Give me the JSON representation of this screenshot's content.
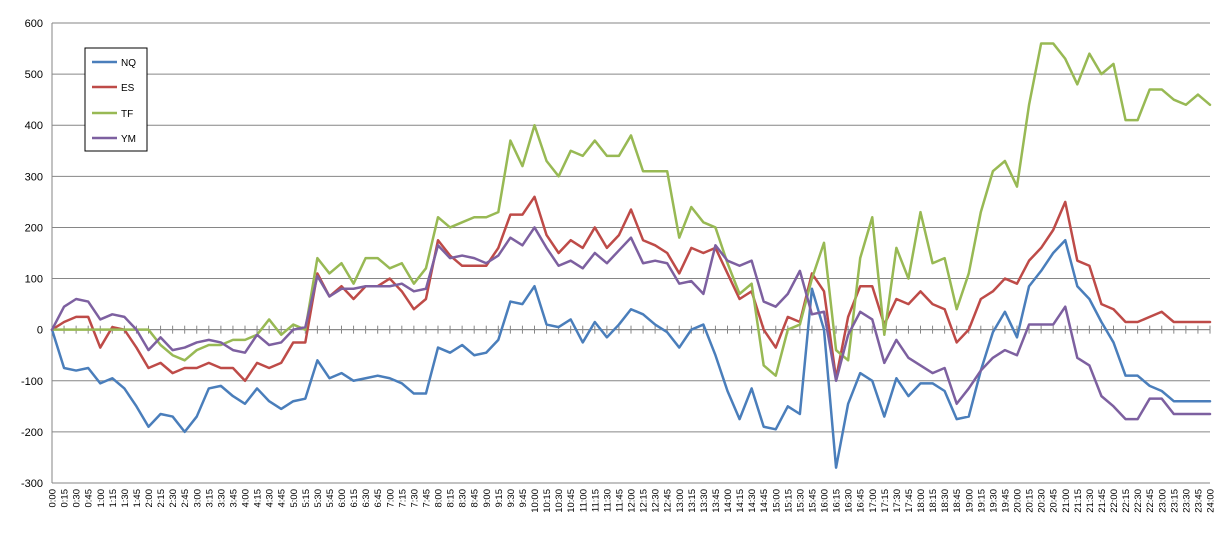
{
  "chart_data": {
    "type": "line",
    "title": "",
    "xlabel": "",
    "ylabel": "",
    "ylim": [
      -300,
      600
    ],
    "yticks": [
      -300,
      -200,
      -100,
      0,
      100,
      200,
      300,
      400,
      500,
      600
    ],
    "grid": true,
    "legend_position": "top-left",
    "x": [
      "0:00",
      "0:15",
      "0:30",
      "0:45",
      "1:00",
      "1:15",
      "1:30",
      "1:45",
      "2:00",
      "2:15",
      "2:30",
      "2:45",
      "3:00",
      "3:15",
      "3:30",
      "3:45",
      "4:00",
      "4:15",
      "4:30",
      "4:45",
      "5:00",
      "5:15",
      "5:30",
      "5:45",
      "6:00",
      "6:15",
      "6:30",
      "6:45",
      "7:00",
      "7:15",
      "7:30",
      "7:45",
      "8:00",
      "8:15",
      "8:30",
      "8:45",
      "9:00",
      "9:15",
      "9:30",
      "9:45",
      "10:00",
      "10:15",
      "10:30",
      "10:45",
      "11:00",
      "11:15",
      "11:30",
      "11:45",
      "12:00",
      "12:15",
      "12:30",
      "12:45",
      "13:00",
      "13:15",
      "13:30",
      "13:45",
      "14:00",
      "14:15",
      "14:30",
      "14:45",
      "15:00",
      "15:15",
      "15:30",
      "15:45",
      "16:00",
      "16:15",
      "16:30",
      "16:45",
      "17:00",
      "17:15",
      "17:30",
      "17:45",
      "18:00",
      "18:15",
      "18:30",
      "18:45",
      "19:00",
      "19:15",
      "19:30",
      "19:45",
      "20:00",
      "20:15",
      "20:30",
      "20:45",
      "21:00",
      "21:15",
      "21:30",
      "21:45",
      "22:00",
      "22:15",
      "22:30",
      "22:45",
      "23:00",
      "23:15",
      "23:30",
      "23:45",
      "24:00"
    ],
    "series": [
      {
        "name": "NQ",
        "color": "#4a7ebb",
        "values": [
          0,
          -75,
          -80,
          -75,
          -105,
          -95,
          -115,
          -150,
          -190,
          -165,
          -170,
          -200,
          -170,
          -115,
          -110,
          -130,
          -145,
          -115,
          -140,
          -155,
          -140,
          -135,
          -60,
          -95,
          -85,
          -100,
          -95,
          -90,
          -95,
          -105,
          -125,
          -125,
          -35,
          -45,
          -30,
          -50,
          -45,
          -20,
          55,
          50,
          85,
          10,
          5,
          20,
          -25,
          15,
          -15,
          10,
          40,
          30,
          10,
          -5,
          -35,
          0,
          10,
          -50,
          -120,
          -175,
          -115,
          -190,
          -195,
          -150,
          -165,
          80,
          0,
          -270,
          -145,
          -85,
          -100,
          -170,
          -95,
          -130,
          -105,
          -105,
          -120,
          -175,
          -170,
          -80,
          -5,
          35,
          -15,
          85,
          115,
          150,
          175,
          85,
          60,
          15,
          -25,
          -90,
          -90,
          -110,
          -120,
          -140,
          -140,
          -140,
          -140
        ]
      },
      {
        "name": "ES",
        "color": "#be4b48",
        "values": [
          0,
          15,
          25,
          25,
          -35,
          5,
          0,
          -35,
          -75,
          -65,
          -85,
          -75,
          -75,
          -65,
          -75,
          -75,
          -100,
          -65,
          -75,
          -65,
          -25,
          -25,
          110,
          65,
          85,
          60,
          85,
          85,
          100,
          75,
          40,
          60,
          175,
          145,
          125,
          125,
          125,
          160,
          225,
          225,
          260,
          185,
          150,
          175,
          160,
          200,
          160,
          185,
          235,
          175,
          165,
          150,
          110,
          160,
          150,
          160,
          110,
          60,
          75,
          0,
          -35,
          25,
          15,
          110,
          75,
          -95,
          25,
          85,
          85,
          10,
          60,
          50,
          75,
          50,
          40,
          -25,
          0,
          60,
          75,
          100,
          90,
          135,
          160,
          195,
          250,
          135,
          125,
          50,
          40,
          15,
          15,
          25,
          35,
          15,
          15,
          15,
          15
        ]
      },
      {
        "name": "TF",
        "color": "#98b954",
        "values": [
          0,
          0,
          0,
          0,
          0,
          0,
          0,
          0,
          0,
          -30,
          -50,
          -60,
          -40,
          -30,
          -30,
          -20,
          -20,
          -10,
          20,
          -10,
          10,
          0,
          140,
          110,
          130,
          90,
          140,
          140,
          120,
          130,
          90,
          120,
          220,
          200,
          210,
          220,
          220,
          230,
          370,
          320,
          400,
          330,
          300,
          350,
          340,
          370,
          340,
          340,
          380,
          310,
          310,
          310,
          180,
          240,
          210,
          200,
          130,
          70,
          90,
          -70,
          -90,
          0,
          10,
          100,
          170,
          -40,
          -60,
          140,
          220,
          -10,
          160,
          100,
          230,
          130,
          140,
          40,
          110,
          230,
          310,
          330,
          280,
          440,
          560,
          560,
          530,
          480,
          540,
          500,
          520,
          410,
          410,
          470,
          470,
          450,
          440,
          460,
          440
        ]
      },
      {
        "name": "YM",
        "color": "#7d60a0",
        "values": [
          0,
          45,
          60,
          55,
          20,
          30,
          25,
          0,
          -40,
          -15,
          -40,
          -35,
          -25,
          -20,
          -25,
          -40,
          -45,
          -10,
          -30,
          -25,
          0,
          5,
          105,
          65,
          80,
          80,
          85,
          85,
          85,
          90,
          75,
          80,
          165,
          140,
          145,
          140,
          130,
          145,
          180,
          165,
          200,
          160,
          125,
          135,
          120,
          150,
          130,
          155,
          180,
          130,
          135,
          130,
          90,
          95,
          70,
          165,
          135,
          125,
          135,
          55,
          45,
          70,
          115,
          30,
          35,
          -100,
          -10,
          35,
          20,
          -65,
          -20,
          -55,
          -70,
          -85,
          -75,
          -145,
          -115,
          -80,
          -55,
          -40,
          -50,
          10,
          10,
          10,
          45,
          -55,
          -70,
          -130,
          -150,
          -175,
          -175,
          -135,
          -135,
          -165,
          -165,
          -165,
          -165
        ]
      }
    ]
  }
}
